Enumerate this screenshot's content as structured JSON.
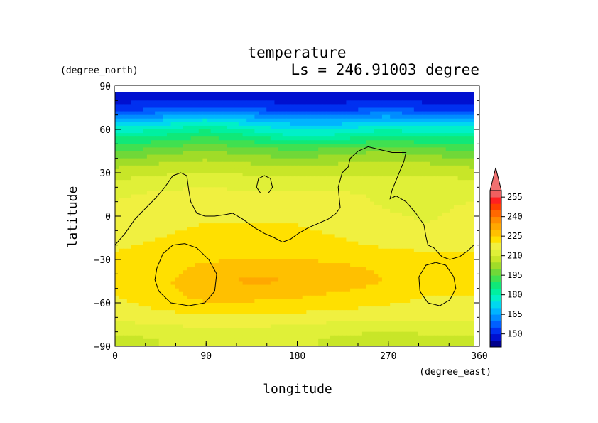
{
  "chart_data": {
    "type": "heatmap",
    "title": "temperature",
    "subtitle": "Ls = 246.91003 degree",
    "xlabel": "longitude",
    "ylabel": "latitude",
    "x_units": "(degree_east)",
    "y_units": "(degree_north)",
    "xlim": [
      0,
      360
    ],
    "ylim": [
      -90,
      90
    ],
    "x_ticks": [
      "0",
      "90",
      "180",
      "270",
      "360"
    ],
    "y_ticks": [
      "90",
      "60",
      "30",
      "0",
      "−30",
      "−60",
      "−90"
    ],
    "x_tick_values": [
      0,
      90,
      180,
      270,
      360
    ],
    "y_tick_values": [
      90,
      60,
      30,
      0,
      -30,
      -60,
      -90
    ],
    "colorbar": {
      "levels": [
        140,
        145,
        150,
        155,
        160,
        165,
        170,
        175,
        180,
        185,
        190,
        195,
        200,
        205,
        210,
        215,
        220,
        225,
        230,
        235,
        240,
        245,
        250,
        255,
        260
      ],
      "tick_labels": [
        "150",
        "165",
        "180",
        "195",
        "210",
        "225",
        "240",
        "255"
      ],
      "tick_values": [
        150,
        165,
        180,
        195,
        210,
        225,
        240,
        255
      ],
      "colors": [
        "#00008c",
        "#0010d0",
        "#0030f0",
        "#0060ff",
        "#008cff",
        "#00b4ff",
        "#00d8f0",
        "#00f0c8",
        "#00f0a0",
        "#10e878",
        "#40e050",
        "#70d838",
        "#a0dc28",
        "#c8e628",
        "#e0f038",
        "#f0f040",
        "#ffe000",
        "#ffc000",
        "#ffa800",
        "#ff8c00",
        "#ff6800",
        "#ff4000",
        "#ff2020",
        "#f06060"
      ],
      "overflow_color": "#f07070"
    },
    "field": {
      "lons": [
        0,
        45,
        90,
        135,
        180,
        225,
        270,
        315,
        360
      ],
      "lats": [
        85,
        75,
        65,
        55,
        45,
        35,
        25,
        15,
        5,
        -5,
        -15,
        -25,
        -35,
        -45,
        -55,
        -65,
        -75,
        -85
      ],
      "values": [
        [
          146,
          146,
          146,
          146,
          146,
          146,
          146,
          146,
          146
        ],
        [
          152,
          153,
          156,
          154,
          151,
          152,
          154,
          152,
          152
        ],
        [
          170,
          172,
          178,
          172,
          168,
          168,
          172,
          170,
          170
        ],
        [
          184,
          186,
          190,
          186,
          180,
          182,
          186,
          184,
          184
        ],
        [
          194,
          198,
          200,
          198,
          196,
          198,
          200,
          198,
          194
        ],
        [
          204,
          206,
          208,
          206,
          204,
          206,
          206,
          206,
          204
        ],
        [
          210,
          212,
          213,
          212,
          212,
          212,
          212,
          212,
          210
        ],
        [
          214,
          216,
          217,
          216,
          216,
          216,
          214,
          214,
          214
        ],
        [
          216,
          218,
          219,
          219,
          218,
          217,
          215,
          214,
          216
        ],
        [
          217,
          219,
          220,
          220,
          220,
          218,
          216,
          215,
          217
        ],
        [
          219,
          220,
          221,
          222,
          222,
          220,
          218,
          217,
          219
        ],
        [
          220,
          221,
          222,
          223,
          223,
          222,
          221,
          220,
          220
        ],
        [
          221,
          223,
          226,
          228,
          227,
          226,
          224,
          222,
          221
        ],
        [
          221,
          224,
          228,
          231,
          230,
          228,
          225,
          222,
          221
        ],
        [
          220,
          223,
          227,
          227,
          226,
          224,
          222,
          220,
          220
        ],
        [
          218,
          220,
          222,
          222,
          221,
          220,
          219,
          218,
          218
        ],
        [
          214,
          215,
          216,
          216,
          215,
          214,
          213,
          214,
          214
        ],
        [
          208,
          210,
          212,
          212,
          211,
          209,
          207,
          208,
          208
        ]
      ]
    },
    "contour_lines": [
      {
        "name": "coastline-main",
        "points": [
          [
            0,
            -20
          ],
          [
            10,
            -12
          ],
          [
            20,
            -2
          ],
          [
            30,
            5
          ],
          [
            40,
            12
          ],
          [
            50,
            20
          ],
          [
            58,
            28
          ],
          [
            66,
            30
          ],
          [
            72,
            28
          ],
          [
            74,
            18
          ],
          [
            76,
            10
          ],
          [
            82,
            2
          ],
          [
            90,
            0
          ],
          [
            100,
            0
          ],
          [
            110,
            1
          ],
          [
            118,
            2
          ],
          [
            128,
            -2
          ],
          [
            140,
            -8
          ],
          [
            150,
            -12
          ],
          [
            160,
            -15
          ],
          [
            168,
            -18
          ],
          [
            176,
            -16
          ],
          [
            184,
            -12
          ],
          [
            194,
            -8
          ],
          [
            204,
            -5
          ],
          [
            214,
            -2
          ],
          [
            222,
            2
          ],
          [
            226,
            6
          ],
          [
            224,
            20
          ],
          [
            228,
            30
          ],
          [
            234,
            34
          ],
          [
            236,
            40
          ],
          [
            244,
            45
          ],
          [
            254,
            48
          ],
          [
            266,
            46
          ],
          [
            278,
            44
          ],
          [
            292,
            44
          ],
          [
            290,
            38
          ],
          [
            284,
            28
          ],
          [
            278,
            18
          ],
          [
            276,
            12
          ],
          [
            282,
            14
          ],
          [
            292,
            10
          ],
          [
            302,
            2
          ],
          [
            310,
            -6
          ],
          [
            312,
            -14
          ],
          [
            314,
            -20
          ],
          [
            320,
            -22
          ],
          [
            328,
            -28
          ],
          [
            336,
            -30
          ],
          [
            346,
            -28
          ],
          [
            354,
            -24
          ],
          [
            360,
            -20
          ]
        ]
      },
      {
        "name": "contour-hellas",
        "closed": true,
        "points": [
          [
            42,
            -36
          ],
          [
            48,
            -26
          ],
          [
            58,
            -20
          ],
          [
            70,
            -19
          ],
          [
            82,
            -22
          ],
          [
            94,
            -30
          ],
          [
            102,
            -40
          ],
          [
            100,
            -52
          ],
          [
            90,
            -60
          ],
          [
            74,
            -62
          ],
          [
            56,
            -60
          ],
          [
            44,
            -52
          ],
          [
            40,
            -44
          ]
        ]
      },
      {
        "name": "contour-argyre",
        "closed": true,
        "points": [
          [
            305,
            -42
          ],
          [
            312,
            -34
          ],
          [
            322,
            -32
          ],
          [
            332,
            -34
          ],
          [
            340,
            -42
          ],
          [
            342,
            -50
          ],
          [
            336,
            -58
          ],
          [
            326,
            -62
          ],
          [
            314,
            -60
          ],
          [
            306,
            -52
          ]
        ]
      },
      {
        "name": "contour-small",
        "closed": true,
        "points": [
          [
            142,
            20
          ],
          [
            144,
            26
          ],
          [
            150,
            28
          ],
          [
            156,
            26
          ],
          [
            158,
            20
          ],
          [
            154,
            16
          ],
          [
            146,
            16
          ]
        ]
      }
    ]
  }
}
